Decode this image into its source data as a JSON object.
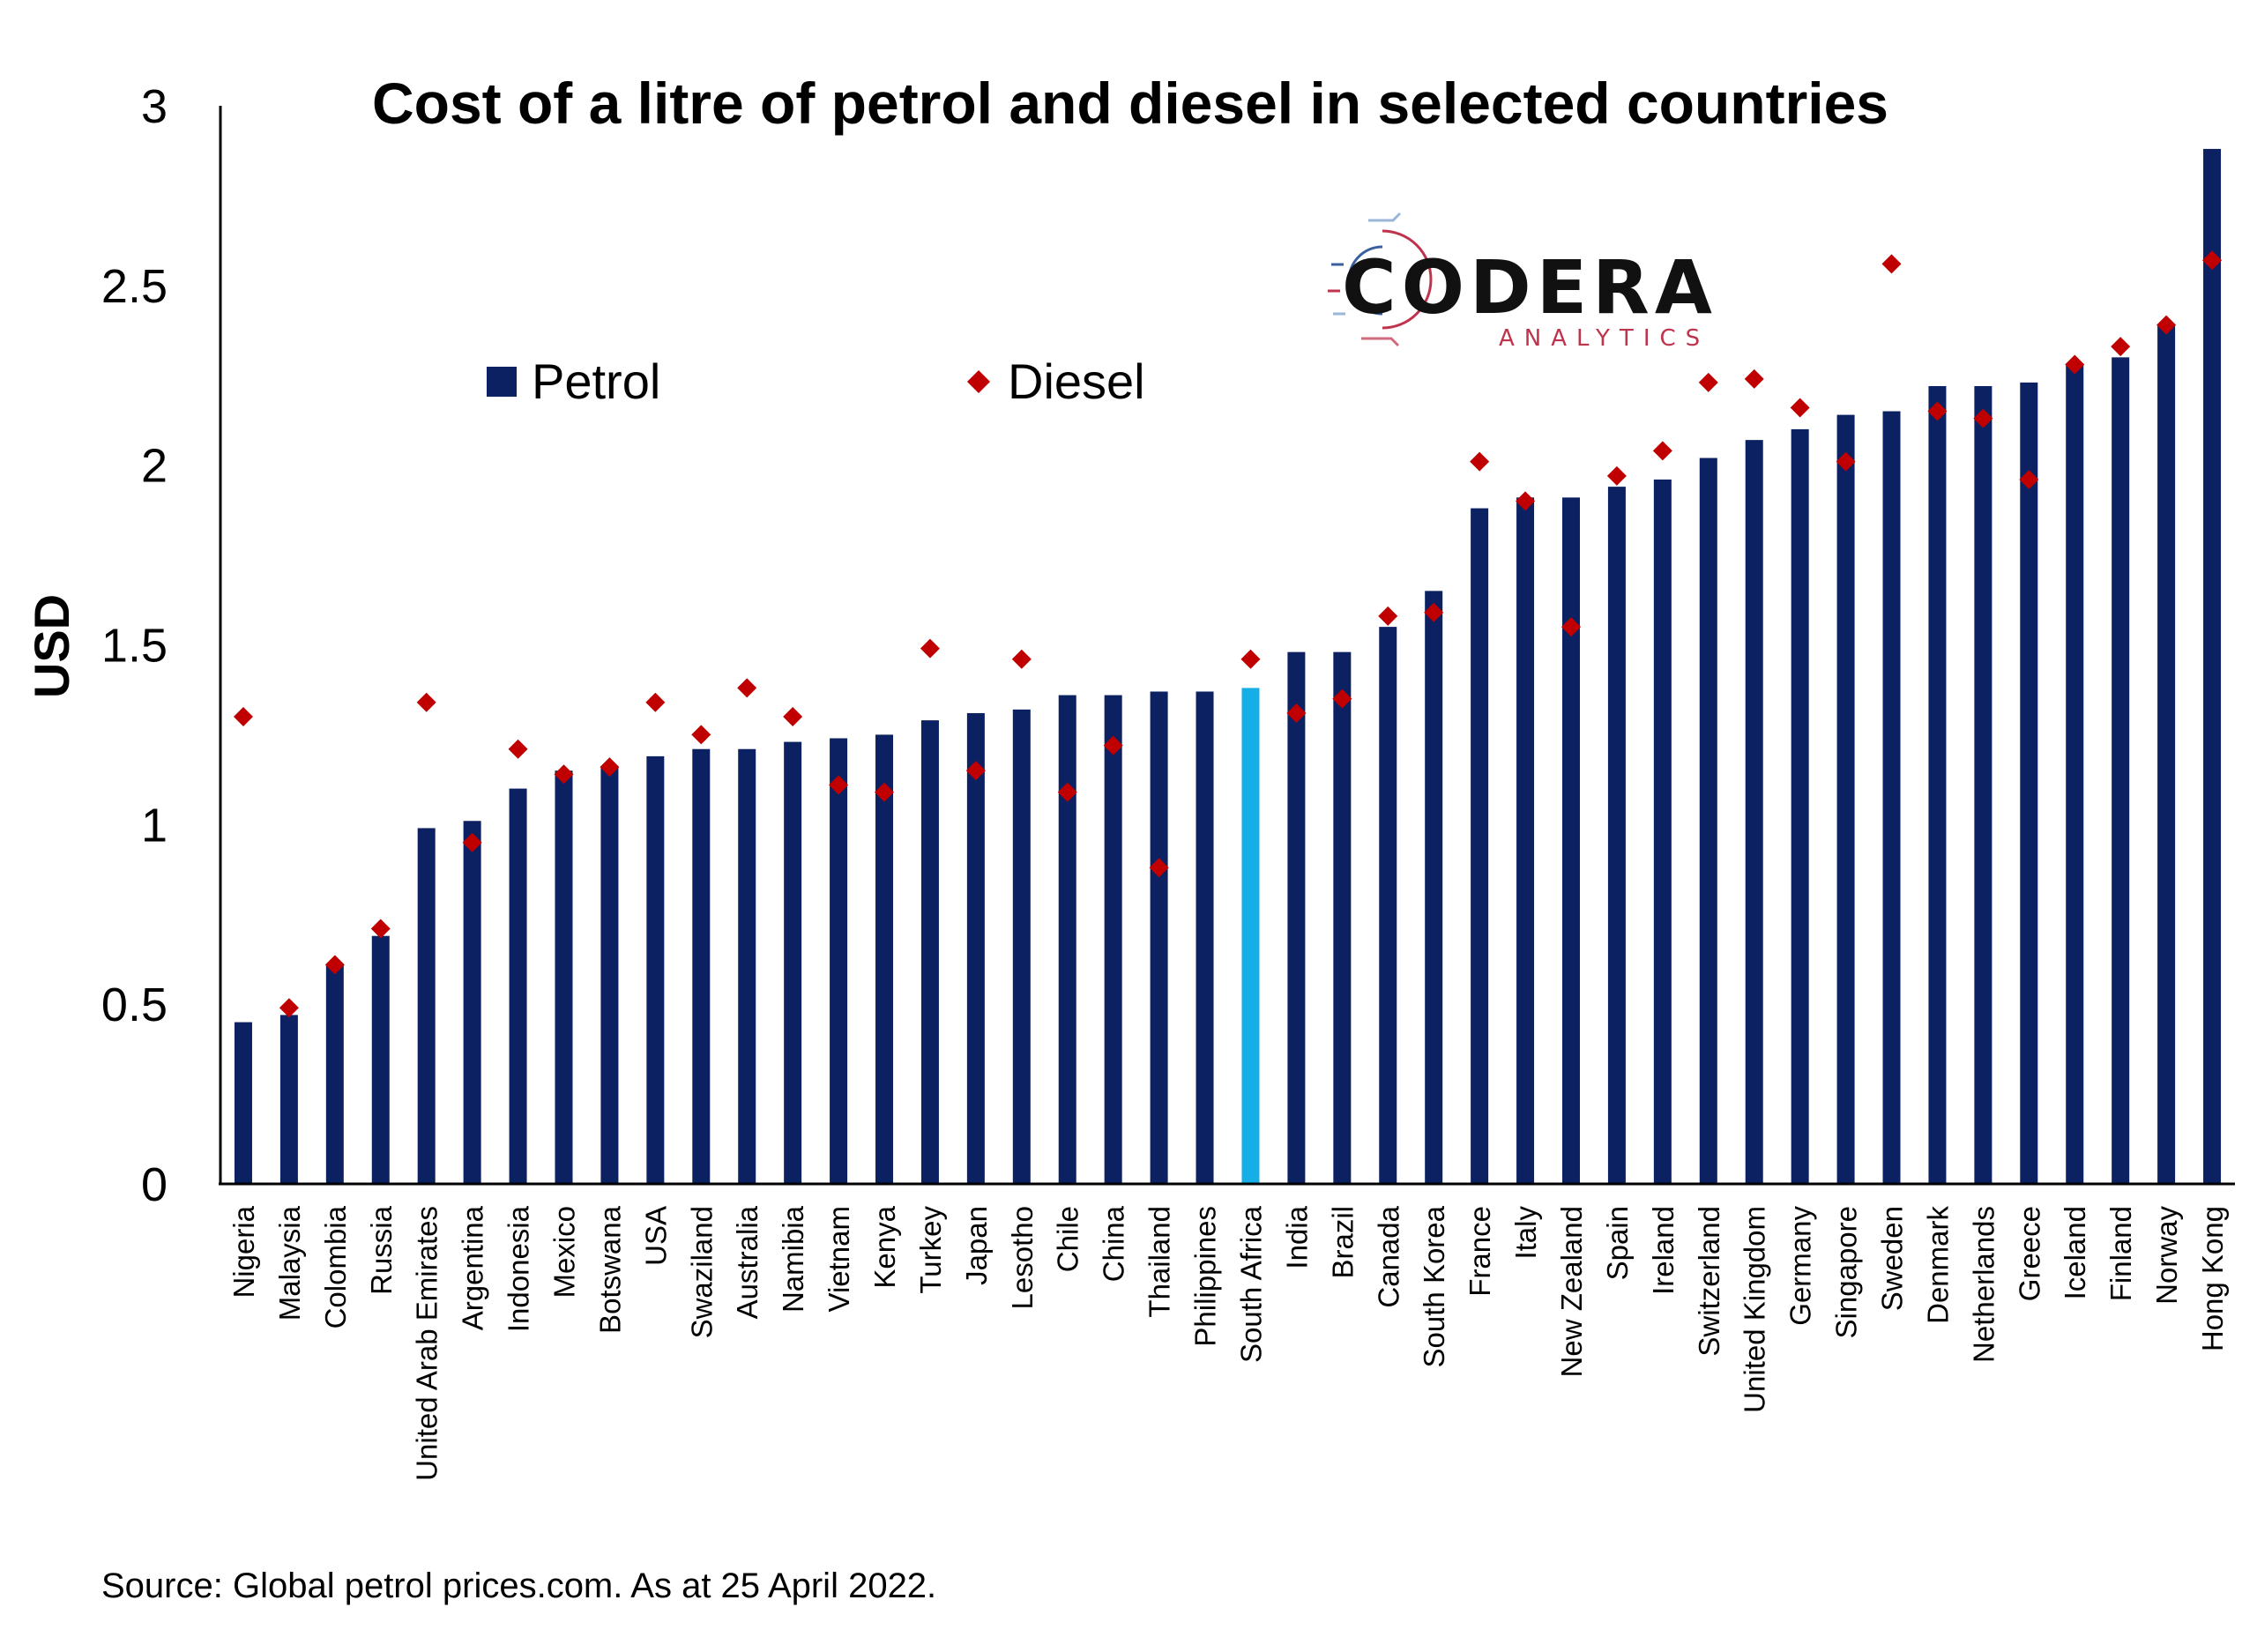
{
  "chart_data": {
    "type": "bar",
    "title": "Cost of a litre of petrol and diesel in selected countries",
    "ylabel": "USD",
    "xlabel": "",
    "ylim": [
      0,
      3
    ],
    "yticks": [
      "0",
      "0.5",
      "1",
      "1.5",
      "2",
      "2.5",
      "3"
    ],
    "categories": [
      "Nigeria",
      "Malaysia",
      "Colombia",
      "Russia",
      "United Arab Emirates",
      "Argentina",
      "Indonesia",
      "Mexico",
      "Botswana",
      "USA",
      "Swaziland",
      "Australia",
      "Namibia",
      "Vietnam",
      "Kenya",
      "Turkey",
      "Japan",
      "Lesotho",
      "Chile",
      "China",
      "Thailand",
      "Philippines",
      "South Africa",
      "India",
      "Brazil",
      "Canada",
      "South Korea",
      "France",
      "Italy",
      "New Zealand",
      "Spain",
      "Ireland",
      "Switzerland",
      "United Kingdom",
      "Germany",
      "Singapore",
      "Sweden",
      "Denmark",
      "Netherlands",
      "Greece",
      "Iceland",
      "Finland",
      "Norway",
      "Hong Kong"
    ],
    "highlight_category": "South Africa",
    "series": [
      {
        "name": "Petrol",
        "kind": "bar",
        "color": "#0c2161",
        "highlight_color": "#16aee6",
        "values": [
          0.45,
          0.47,
          0.61,
          0.69,
          0.99,
          1.01,
          1.1,
          1.15,
          1.16,
          1.19,
          1.21,
          1.21,
          1.23,
          1.24,
          1.25,
          1.29,
          1.31,
          1.32,
          1.36,
          1.36,
          1.37,
          1.37,
          1.38,
          1.48,
          1.48,
          1.55,
          1.65,
          1.88,
          1.91,
          1.91,
          1.94,
          1.96,
          2.02,
          2.07,
          2.1,
          2.14,
          2.15,
          2.22,
          2.22,
          2.23,
          2.28,
          2.3,
          2.39,
          2.88
        ]
      },
      {
        "name": "Diesel",
        "kind": "scatter",
        "marker": "diamond",
        "color": "#c00000",
        "values": [
          1.3,
          0.49,
          0.61,
          0.71,
          1.34,
          0.95,
          1.21,
          1.14,
          1.16,
          1.34,
          1.25,
          1.38,
          1.3,
          1.11,
          1.09,
          1.49,
          1.15,
          1.46,
          1.09,
          1.22,
          0.88,
          null,
          1.46,
          1.31,
          1.35,
          1.58,
          1.59,
          2.01,
          1.9,
          1.55,
          1.97,
          2.04,
          2.23,
          2.24,
          2.16,
          2.01,
          2.56,
          2.15,
          2.13,
          1.96,
          2.28,
          2.33,
          2.39,
          2.57
        ]
      }
    ],
    "legend": {
      "placement": "top-left",
      "entries": [
        "Petrol",
        "Diesel"
      ]
    },
    "grid": false,
    "source": "Source: Global petrol prices.com. As at 25 April 2022."
  },
  "logo": {
    "name": "CODERA",
    "tagline": "ANALYTICS"
  }
}
